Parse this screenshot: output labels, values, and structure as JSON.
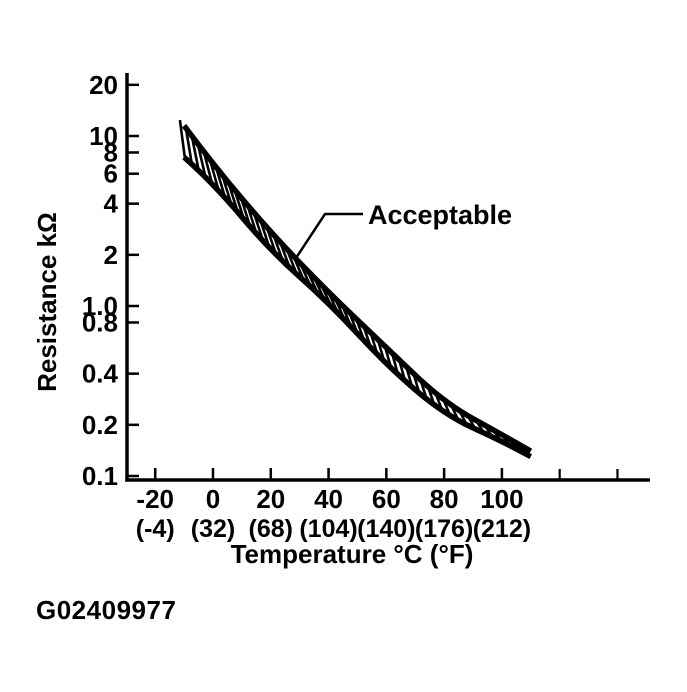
{
  "figure": {
    "id_label": "G02409977",
    "background": "#ffffff",
    "ink_color": "#000000"
  },
  "chart_data": {
    "type": "area",
    "title": "",
    "xlabel": "Temperature °C (°F)",
    "ylabel": "Resistance kΩ",
    "grid": false,
    "legend": "none",
    "band_style": "hatched",
    "x_axis": {
      "unit_primary": "°C",
      "unit_secondary": "°F",
      "range_shown": [
        -30,
        150
      ],
      "ticks": [
        {
          "value": -20,
          "label_c": "-20",
          "label_f": "(-4)"
        },
        {
          "value": 0,
          "label_c": "0",
          "label_f": "(32)"
        },
        {
          "value": 20,
          "label_c": "20",
          "label_f": "(68)"
        },
        {
          "value": 40,
          "label_c": "40",
          "label_f": "(104)"
        },
        {
          "value": 60,
          "label_c": "60",
          "label_f": "(140)"
        },
        {
          "value": 80,
          "label_c": "80",
          "label_f": "(176)"
        },
        {
          "value": 100,
          "label_c": "100",
          "label_f": "(212)"
        }
      ],
      "unlabeled_tick_values": [
        120,
        140
      ]
    },
    "y_axis": {
      "scale": "log",
      "range_shown": [
        0.1,
        24
      ],
      "ticks": [
        {
          "value": 20,
          "label": "20"
        },
        {
          "value": 10,
          "label": "10"
        },
        {
          "value": 8,
          "label": "8"
        },
        {
          "value": 6,
          "label": "6"
        },
        {
          "value": 4,
          "label": "4"
        },
        {
          "value": 2,
          "label": "2"
        },
        {
          "value": 1.0,
          "label": "1.0"
        },
        {
          "value": 0.8,
          "label": "0.8"
        },
        {
          "value": 0.4,
          "label": "0.4"
        },
        {
          "value": 0.2,
          "label": "0.2"
        },
        {
          "value": 0.1,
          "label": "0.1"
        }
      ]
    },
    "series": [
      {
        "name": "acceptable-band-upper",
        "x": [
          -10,
          0,
          20,
          40,
          60,
          80,
          100,
          110
        ],
        "y": [
          11.5,
          6.8,
          2.7,
          1.2,
          0.57,
          0.27,
          0.175,
          0.14
        ]
      },
      {
        "name": "acceptable-band-lower",
        "x": [
          -10,
          0,
          20,
          40,
          60,
          80,
          100,
          110
        ],
        "y": [
          7.5,
          5.3,
          2.1,
          1.05,
          0.45,
          0.23,
          0.16,
          0.13
        ]
      }
    ],
    "annotation": {
      "label": "Acceptable"
    }
  }
}
